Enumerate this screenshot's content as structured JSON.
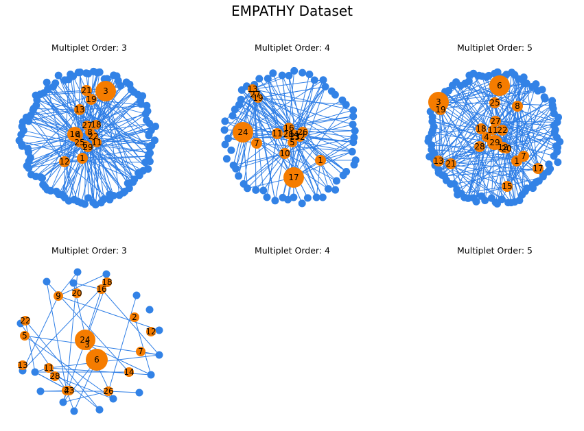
{
  "title": "EMPATHY Dataset",
  "colors": {
    "edge": "#2e7ee6",
    "peripheral": "#3282e6",
    "hub": "#f57c00",
    "label": "#000000"
  },
  "panels": [
    {
      "id": "p1",
      "subtitle": "Multiplet Order: 3",
      "labels": [
        "3",
        "21",
        "19",
        "13",
        "27",
        "18",
        "16",
        "8",
        "22",
        "4",
        "25",
        "6",
        "29",
        "11",
        "1",
        "12"
      ]
    },
    {
      "id": "p2",
      "subtitle": "Multiplet Order: 4",
      "labels": [
        "13",
        "27",
        "19",
        "24",
        "7",
        "11",
        "16",
        "26",
        "28",
        "14",
        "21",
        "32",
        "5",
        "10",
        "17",
        "1"
      ]
    },
    {
      "id": "p3",
      "subtitle": "Multiplet Order: 5",
      "labels": [
        "6",
        "3",
        "19",
        "25",
        "8",
        "27",
        "18",
        "22",
        "11",
        "4",
        "29",
        "28",
        "12",
        "20",
        "13",
        "21",
        "7",
        "1",
        "17",
        "15"
      ]
    },
    {
      "id": "p4",
      "subtitle": "Multiplet Order: 3",
      "labels": [
        "18",
        "16",
        "9",
        "20",
        "22",
        "2",
        "12",
        "5",
        "24",
        "3",
        "7",
        "6",
        "13",
        "11",
        "28",
        "14",
        "4",
        "23",
        "26"
      ]
    },
    {
      "id": "p5",
      "subtitle": "Multiplet Order: 4",
      "labels": []
    },
    {
      "id": "p6",
      "subtitle": "Multiplet Order: 5",
      "labels": []
    }
  ]
}
